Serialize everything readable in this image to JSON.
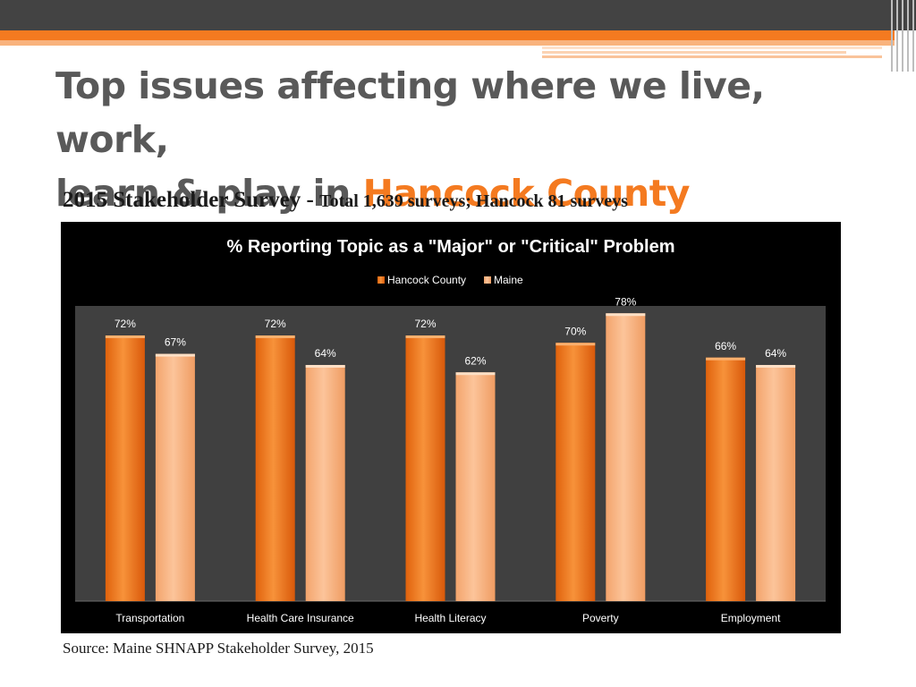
{
  "slide": {
    "title_line1": "Top issues affecting where we live, work,",
    "title_line2_prefix": "learn & play in ",
    "title_highlight": "Hancock County",
    "subtitle_main": "2015 Stakeholder Survey - ",
    "subtitle_detail": "Total 1,639 surveys; Hancock 81 surveys",
    "source": "Source: Maine SHNAPP Stakeholder Survey, 2015"
  },
  "colors": {
    "accent": "#f47a20",
    "title_text": "#595959",
    "plot_bg": "#404040",
    "series_hancock": "#f47a20",
    "series_maine": "#f9b180"
  },
  "chart_data": {
    "type": "bar",
    "title": "% Reporting Topic as a \"Major\" or \"Critical\" Problem",
    "categories": [
      "Transportation",
      "Health Care Insurance",
      "Health Literacy",
      "Poverty",
      "Employment"
    ],
    "series": [
      {
        "name": "Hancock County",
        "values": [
          72,
          72,
          72,
          70,
          66
        ],
        "labels": [
          "72%",
          "72%",
          "72%",
          "70%",
          "66%"
        ]
      },
      {
        "name": "Maine",
        "values": [
          67,
          64,
          62,
          78,
          64
        ],
        "labels": [
          "67%",
          "64%",
          "62%",
          "78%",
          "64%"
        ]
      }
    ],
    "xlabel": "",
    "ylabel": "",
    "ylim": [
      0,
      80
    ],
    "legend": "top-center",
    "grid": false
  }
}
